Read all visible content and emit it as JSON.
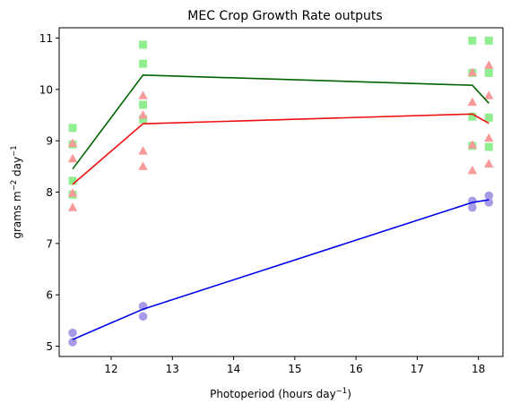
{
  "chart_data": {
    "type": "scatter",
    "title": "MEC Crop Growth Rate outputs",
    "xlabel": {
      "text": "Photoperiod (hours day",
      "sup": "−1",
      "tail": ")"
    },
    "ylabel": {
      "text": "grams m",
      "sup1": "−2",
      "mid": " day",
      "sup2": "−1"
    },
    "xlim": [
      11.15,
      18.4
    ],
    "ylim": [
      4.8,
      11.2
    ],
    "xticks": [
      12,
      13,
      14,
      15,
      16,
      17,
      18
    ],
    "yticks": [
      5,
      6,
      7,
      8,
      9,
      10,
      11
    ],
    "grid": false,
    "colors": {
      "square_marker": "#90ee90",
      "triangle_marker": "#f89a9a",
      "circle_marker": "#a99ae8",
      "green_line": "#006400",
      "red_line": "#ee1111",
      "blue_line": "#0000ee"
    },
    "scatter_series": [
      {
        "marker": "square",
        "color_key": "square_marker",
        "points": [
          [
            11.37,
            9.25
          ],
          [
            11.37,
            8.93
          ],
          [
            11.37,
            8.22
          ],
          [
            11.37,
            7.95
          ],
          [
            12.52,
            10.87
          ],
          [
            12.52,
            10.5
          ],
          [
            12.52,
            9.7
          ],
          [
            12.52,
            9.42
          ],
          [
            17.9,
            10.95
          ],
          [
            17.9,
            10.32
          ],
          [
            17.9,
            9.47
          ],
          [
            17.9,
            8.9
          ],
          [
            18.17,
            10.95
          ],
          [
            18.17,
            10.32
          ],
          [
            18.17,
            9.45
          ],
          [
            18.17,
            8.88
          ]
        ]
      },
      {
        "marker": "triangle",
        "color_key": "triangle_marker",
        "points": [
          [
            11.37,
            8.95
          ],
          [
            11.37,
            8.65
          ],
          [
            11.37,
            7.98
          ],
          [
            11.37,
            7.7
          ],
          [
            12.52,
            9.88
          ],
          [
            12.52,
            9.5
          ],
          [
            12.52,
            8.8
          ],
          [
            12.52,
            8.5
          ],
          [
            17.9,
            10.33
          ],
          [
            17.9,
            9.75
          ],
          [
            17.9,
            8.92
          ],
          [
            17.9,
            8.42
          ],
          [
            18.17,
            10.47
          ],
          [
            18.17,
            9.88
          ],
          [
            18.17,
            9.05
          ],
          [
            18.17,
            8.55
          ]
        ]
      },
      {
        "marker": "circle",
        "color_key": "circle_marker",
        "points": [
          [
            11.37,
            5.26
          ],
          [
            11.37,
            5.08
          ],
          [
            12.52,
            5.78
          ],
          [
            12.52,
            5.58
          ],
          [
            17.9,
            7.83
          ],
          [
            17.9,
            7.7
          ],
          [
            18.17,
            7.93
          ],
          [
            18.17,
            7.8
          ]
        ]
      }
    ],
    "line_series": [
      {
        "color_key": "green_line",
        "points": [
          [
            11.37,
            8.45
          ],
          [
            12.52,
            10.28
          ],
          [
            17.9,
            10.08
          ],
          [
            18.17,
            9.73
          ]
        ]
      },
      {
        "color_key": "red_line",
        "points": [
          [
            11.37,
            8.15
          ],
          [
            12.52,
            9.33
          ],
          [
            17.9,
            9.52
          ],
          [
            18.17,
            9.34
          ]
        ]
      },
      {
        "color_key": "blue_line",
        "points": [
          [
            11.37,
            5.13
          ],
          [
            12.52,
            5.72
          ],
          [
            17.9,
            7.8
          ],
          [
            18.17,
            7.85
          ]
        ]
      }
    ]
  }
}
